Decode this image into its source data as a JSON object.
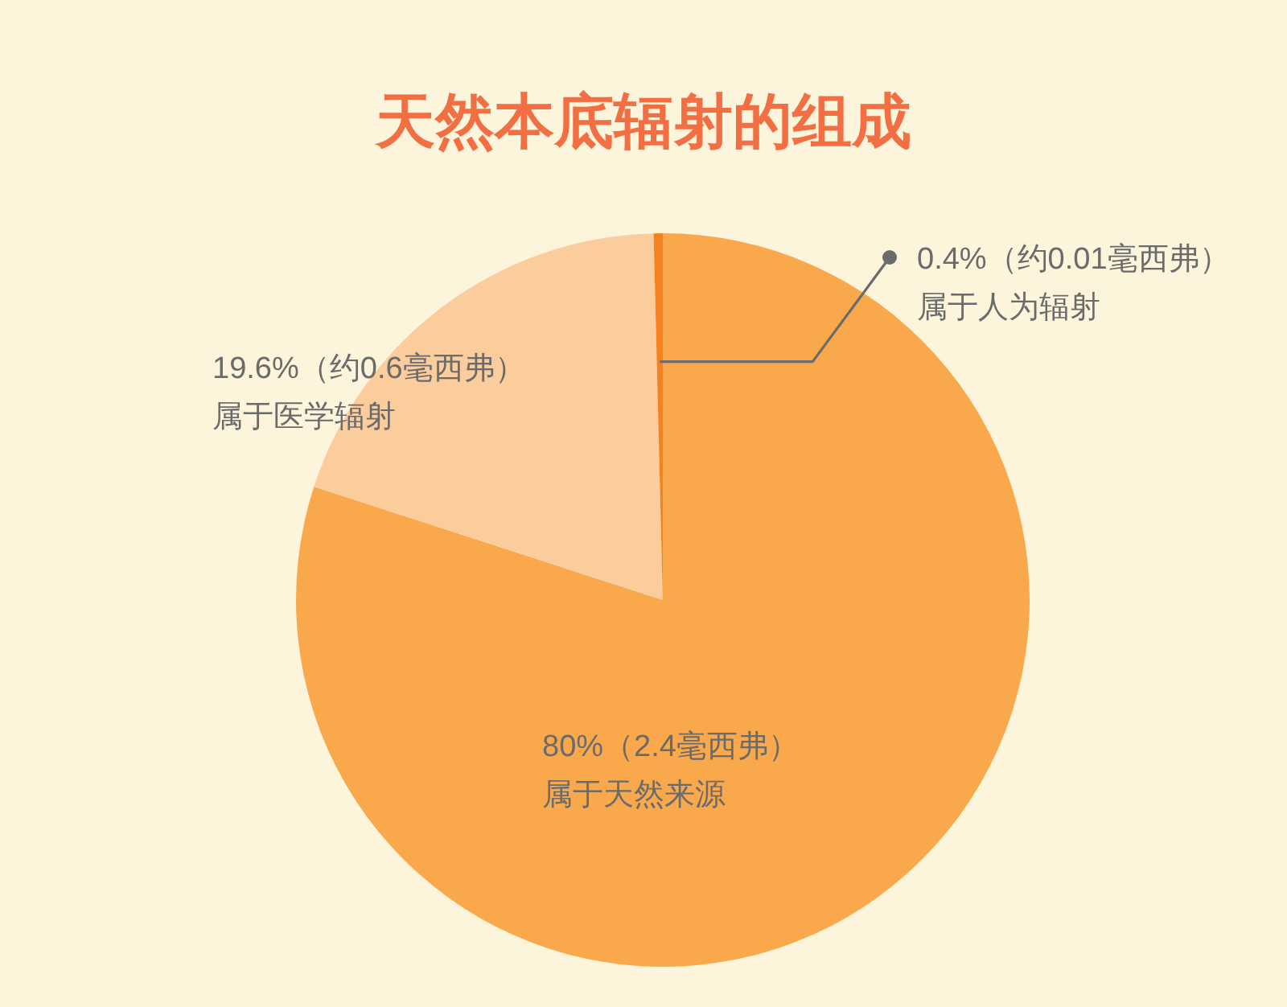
{
  "chart_data": {
    "type": "pie",
    "title": "天然本底辐射的组成",
    "categories": [
      "属于天然来源",
      "属于医学辐射",
      "属于人为辐射"
    ],
    "values": [
      80,
      19.6,
      0.4
    ],
    "colors": [
      "#f9a94b",
      "#fbcd9c",
      "#f5821f"
    ],
    "value_labels": [
      "80%（2.4毫西弗）",
      "19.6%（约0.6毫西弗）",
      "0.4%（约0.01毫西弗）"
    ]
  }
}
